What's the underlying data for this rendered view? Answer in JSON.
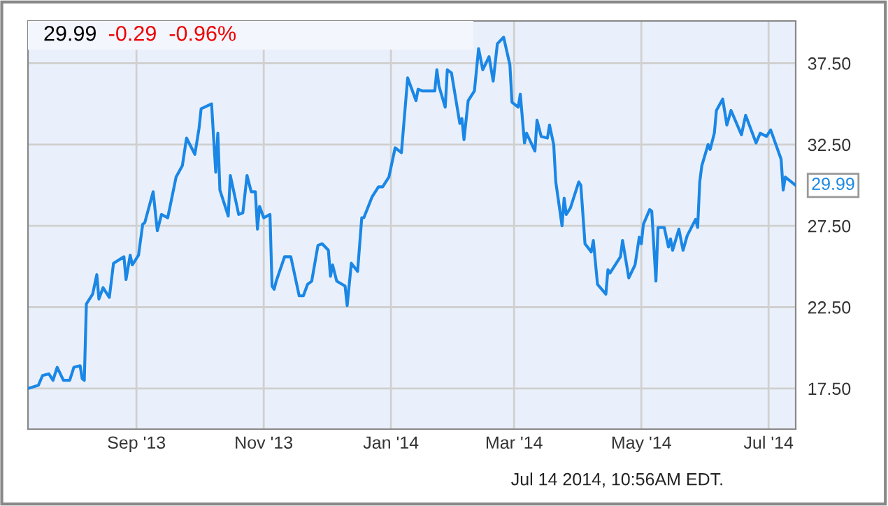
{
  "chart_data": {
    "type": "line",
    "title": "29.99",
    "subtitle": "-0.29  -0.96%",
    "x": [
      "2013-07-11",
      "2013-07-16",
      "2013-07-18",
      "2013-07-21",
      "2013-07-23",
      "2013-07-25",
      "2013-07-28",
      "2013-07-31",
      "2013-08-02",
      "2013-08-05",
      "2013-08-06",
      "2013-08-07",
      "2013-08-08",
      "2013-08-11",
      "2013-08-13",
      "2013-08-14",
      "2013-08-16",
      "2013-08-19",
      "2013-08-21",
      "2013-08-26",
      "2013-08-27",
      "2013-08-29",
      "2013-08-30",
      "2013-09-02",
      "2013-09-04",
      "2013-09-05",
      "2013-09-09",
      "2013-09-11",
      "2013-09-13",
      "2013-09-16",
      "2013-09-20",
      "2013-09-23",
      "2013-09-25",
      "2013-09-29",
      "2013-10-01",
      "2013-10-02",
      "2013-10-07",
      "2013-10-08",
      "2013-10-09",
      "2013-10-10",
      "2013-10-11",
      "2013-10-15",
      "2013-10-16",
      "2013-10-20",
      "2013-10-22",
      "2013-10-24",
      "2013-10-26",
      "2013-10-28",
      "2013-10-29",
      "2013-10-30",
      "2013-11-01",
      "2013-11-04",
      "2013-11-05",
      "2013-11-06",
      "2013-11-07",
      "2013-11-11",
      "2013-11-14",
      "2013-11-18",
      "2013-11-20",
      "2013-11-22",
      "2013-11-24",
      "2013-11-27",
      "2013-11-29",
      "2013-12-02",
      "2013-12-03",
      "2013-12-04",
      "2013-12-06",
      "2013-12-10",
      "2013-12-11",
      "2013-12-13",
      "2013-12-16",
      "2013-12-18",
      "2013-12-19",
      "2013-12-23",
      "2013-12-26",
      "2013-12-28",
      "2013-12-31",
      "2014-01-03",
      "2014-01-06",
      "2014-01-09",
      "2014-01-13",
      "2014-01-14",
      "2014-01-16",
      "2014-01-22",
      "2014-01-23",
      "2014-01-24",
      "2014-01-27",
      "2014-01-28",
      "2014-01-30",
      "2014-02-03",
      "2014-02-04",
      "2014-02-05",
      "2014-02-07",
      "2014-02-10",
      "2014-02-12",
      "2014-02-14",
      "2014-02-17",
      "2014-02-19",
      "2014-02-21",
      "2014-02-24",
      "2014-02-27",
      "2014-02-28",
      "2014-03-03",
      "2014-03-04",
      "2014-03-06",
      "2014-03-07",
      "2014-03-11",
      "2014-03-12",
      "2014-03-14",
      "2014-03-17",
      "2014-03-18",
      "2014-03-20",
      "2014-03-21",
      "2014-03-24",
      "2014-03-25",
      "2014-03-26",
      "2014-03-28",
      "2014-04-01",
      "2014-04-02",
      "2014-04-04",
      "2014-04-07",
      "2014-04-08",
      "2014-04-10",
      "2014-04-14",
      "2014-04-15",
      "2014-04-16",
      "2014-04-21",
      "2014-04-22",
      "2014-04-25",
      "2014-04-28",
      "2014-04-30",
      "2014-05-01",
      "2014-05-02",
      "2014-05-05",
      "2014-05-06",
      "2014-05-08",
      "2014-05-09",
      "2014-05-12",
      "2014-05-14",
      "2014-05-15",
      "2014-05-16",
      "2014-05-19",
      "2014-05-21",
      "2014-05-23",
      "2014-05-27",
      "2014-05-28",
      "2014-05-29",
      "2014-05-30",
      "2014-06-02",
      "2014-06-03",
      "2014-06-05",
      "2014-06-06",
      "2014-06-09",
      "2014-06-11",
      "2014-06-13",
      "2014-06-18",
      "2014-06-19",
      "2014-06-20",
      "2014-06-25",
      "2014-06-27",
      "2014-06-30",
      "2014-07-02",
      "2014-07-07",
      "2014-07-08",
      "2014-07-09",
      "2014-07-14"
    ],
    "series": [
      {
        "color": "#1a87e6",
        "values": [
          17.5,
          17.7,
          18.3,
          18.4,
          18.0,
          18.8,
          18.0,
          18.0,
          18.8,
          18.9,
          18.1,
          18.0,
          22.7,
          23.3,
          24.5,
          23.0,
          23.7,
          23.1,
          25.2,
          25.6,
          24.2,
          25.7,
          25.1,
          25.7,
          27.6,
          27.7,
          29.6,
          27.2,
          28.2,
          28.0,
          30.5,
          31.2,
          32.9,
          31.9,
          33.5,
          34.7,
          35.0,
          32.9,
          30.8,
          33.2,
          29.7,
          28.1,
          30.6,
          28.2,
          28.3,
          30.6,
          29.6,
          29.6,
          27.3,
          28.7,
          28.0,
          28.2,
          23.8,
          23.6,
          24.1,
          25.6,
          25.6,
          23.2,
          23.2,
          23.9,
          24.1,
          26.3,
          26.4,
          26.0,
          24.4,
          25.1,
          24.1,
          23.8,
          22.6,
          25.2,
          24.7,
          28.0,
          28.0,
          29.3,
          29.9,
          29.9,
          30.5,
          32.3,
          32.0,
          36.6,
          35.2,
          35.9,
          35.8,
          35.8,
          37.1,
          36.1,
          34.8,
          37.1,
          36.9,
          33.8,
          34.1,
          32.8,
          35.2,
          35.8,
          38.4,
          37.1,
          37.9,
          36.4,
          38.7,
          39.1,
          37.4,
          35.1,
          34.8,
          35.6,
          32.6,
          33.2,
          32.1,
          34.0,
          33.0,
          32.9,
          33.7,
          32.5,
          30.2,
          27.5,
          29.2,
          28.2,
          28.6,
          30.2,
          30.0,
          26.4,
          25.9,
          26.6,
          23.9,
          23.3,
          24.8,
          24.6,
          25.6,
          26.6,
          24.3,
          25.1,
          26.8,
          26.4,
          27.6,
          28.5,
          28.4,
          24.1,
          27.4,
          27.4,
          26.2,
          26.7,
          26.0,
          27.3,
          26.0,
          26.9,
          27.9,
          27.4,
          30.2,
          31.2,
          32.5,
          32.2,
          33.2,
          34.6,
          35.3,
          33.7,
          34.6,
          33.1,
          33.7,
          34.3,
          32.6,
          33.2,
          33.0,
          33.4,
          31.6,
          29.7,
          30.5,
          29.99
        ]
      }
    ],
    "xlim": [
      "2013-07-11",
      "2014-07-14"
    ],
    "xticks": [
      {
        "value": "2013-09-01",
        "label": "Sep '13"
      },
      {
        "value": "2013-11-01",
        "label": "Nov '13"
      },
      {
        "value": "2014-01-01",
        "label": "Jan '14"
      },
      {
        "value": "2014-03-01",
        "label": "Mar '14"
      },
      {
        "value": "2014-05-01",
        "label": "May '14"
      },
      {
        "value": "2014-07-01",
        "label": "Jul '14"
      }
    ],
    "ylim": [
      15.0,
      40.1
    ],
    "yticks": [
      {
        "value": 17.5,
        "label": "17.50"
      },
      {
        "value": 22.5,
        "label": "22.50"
      },
      {
        "value": 27.5,
        "label": "27.50"
      },
      {
        "value": 32.5,
        "label": "32.50"
      },
      {
        "value": 37.5,
        "label": "37.50"
      }
    ],
    "grid": true,
    "marker": "none",
    "line_style": "solid",
    "annotations": [
      {
        "text": "29.99",
        "x": "2014-07-14",
        "y": 29.99
      },
      "Jul 14 2014, 10:56AM EDT."
    ]
  }
}
